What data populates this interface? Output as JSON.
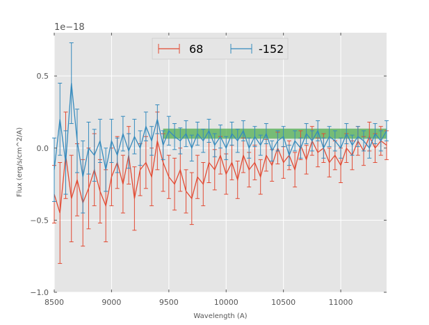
{
  "chart_data": {
    "type": "line",
    "title": "",
    "xlabel": "Wavelength (A)",
    "ylabel": "Flux (erg/s/cm^2/A)",
    "offset_text": "1e−18",
    "xlim": [
      8500,
      11400
    ],
    "ylim": [
      -1.0,
      0.8
    ],
    "xticks": [
      8500,
      9000,
      9500,
      10000,
      10500,
      11000
    ],
    "yticks": [
      -1.0,
      -0.5,
      0.0,
      0.5
    ],
    "ytick_labels": [
      "−1.0",
      "−0.5",
      "0.0",
      "0.5"
    ],
    "grid": true,
    "legend_position": "top-center",
    "colors": {
      "background": "#e5e5e5",
      "grid": "#ffffff",
      "band": "#2ca02c"
    },
    "band": {
      "x_range": [
        9450,
        11400
      ],
      "y_range": [
        0.065,
        0.135
      ]
    },
    "series": [
      {
        "name": "68",
        "color": "#e24a33",
        "x": [
          8500,
          8550,
          8600,
          8650,
          8700,
          8750,
          8800,
          8850,
          8900,
          8950,
          9000,
          9050,
          9100,
          9150,
          9200,
          9250,
          9300,
          9350,
          9400,
          9450,
          9500,
          9550,
          9600,
          9650,
          9700,
          9750,
          9800,
          9850,
          9900,
          9950,
          10000,
          10050,
          10100,
          10150,
          10200,
          10250,
          10300,
          10350,
          10400,
          10450,
          10500,
          10550,
          10600,
          10650,
          10700,
          10750,
          10800,
          10850,
          10900,
          10950,
          11000,
          11050,
          11100,
          11150,
          11200,
          11250,
          11300,
          11350,
          11400
        ],
        "y": [
          -0.32,
          -0.45,
          -0.05,
          -0.35,
          -0.22,
          -0.38,
          -0.28,
          -0.15,
          -0.3,
          -0.4,
          -0.2,
          -0.1,
          -0.25,
          -0.05,
          -0.35,
          -0.15,
          -0.1,
          -0.2,
          0.05,
          -0.1,
          -0.2,
          -0.25,
          -0.15,
          -0.3,
          -0.35,
          -0.2,
          -0.25,
          -0.1,
          -0.15,
          -0.05,
          -0.18,
          -0.1,
          -0.22,
          -0.05,
          -0.15,
          -0.1,
          -0.2,
          -0.05,
          -0.12,
          0.0,
          -0.1,
          -0.05,
          -0.15,
          0.02,
          -0.08,
          0.05,
          -0.03,
          0.0,
          -0.1,
          -0.05,
          -0.12,
          0.0,
          -0.05,
          0.05,
          -0.02,
          0.08,
          0.0,
          0.05,
          0.02
        ],
        "err": [
          0.2,
          0.35,
          0.3,
          0.3,
          0.25,
          0.3,
          0.28,
          0.25,
          0.22,
          0.25,
          0.2,
          0.18,
          0.2,
          0.2,
          0.22,
          0.18,
          0.18,
          0.2,
          0.2,
          0.2,
          0.15,
          0.18,
          0.15,
          0.15,
          0.18,
          0.15,
          0.15,
          0.14,
          0.14,
          0.13,
          0.14,
          0.12,
          0.13,
          0.12,
          0.12,
          0.12,
          0.12,
          0.11,
          0.11,
          0.11,
          0.11,
          0.1,
          0.12,
          0.1,
          0.1,
          0.1,
          0.1,
          0.1,
          0.1,
          0.1,
          0.12,
          0.1,
          0.1,
          0.1,
          0.1,
          0.1,
          0.1,
          0.1,
          0.1
        ]
      },
      {
        "name": "-152",
        "color": "#348abd",
        "x": [
          8500,
          8550,
          8600,
          8650,
          8700,
          8750,
          8800,
          8850,
          8900,
          8950,
          9000,
          9050,
          9100,
          9150,
          9200,
          9250,
          9300,
          9350,
          9400,
          9450,
          9500,
          9550,
          9600,
          9650,
          9700,
          9750,
          9800,
          9850,
          9900,
          9950,
          10000,
          10050,
          10100,
          10150,
          10200,
          10250,
          10300,
          10350,
          10400,
          10450,
          10500,
          10550,
          10600,
          10650,
          10700,
          10750,
          10800,
          10850,
          10900,
          10950,
          11000,
          11050,
          11100,
          11150,
          11200,
          11250,
          11300,
          11350,
          11400
        ],
        "y": [
          -0.15,
          0.2,
          -0.1,
          0.45,
          0.05,
          -0.2,
          0.0,
          -0.05,
          0.05,
          -0.15,
          0.05,
          -0.05,
          0.1,
          -0.02,
          0.08,
          0.0,
          0.15,
          0.05,
          0.2,
          0.02,
          0.12,
          0.08,
          0.05,
          0.1,
          0.0,
          0.1,
          0.05,
          0.12,
          0.02,
          0.08,
          0.0,
          0.1,
          0.05,
          0.12,
          0.0,
          0.08,
          0.02,
          0.1,
          -0.02,
          0.05,
          0.08,
          -0.05,
          0.05,
          0.0,
          0.1,
          0.05,
          0.12,
          0.0,
          0.08,
          0.05,
          0.0,
          0.1,
          0.02,
          0.08,
          0.05,
          0.0,
          0.1,
          0.05,
          0.12
        ],
        "err": [
          0.22,
          0.25,
          0.22,
          0.28,
          0.22,
          0.25,
          0.18,
          0.18,
          0.15,
          0.15,
          0.15,
          0.12,
          0.12,
          0.12,
          0.12,
          0.12,
          0.1,
          0.1,
          0.1,
          0.1,
          0.1,
          0.09,
          0.09,
          0.09,
          0.09,
          0.08,
          0.08,
          0.08,
          0.08,
          0.08,
          0.08,
          0.08,
          0.08,
          0.07,
          0.07,
          0.07,
          0.07,
          0.07,
          0.07,
          0.07,
          0.07,
          0.07,
          0.07,
          0.07,
          0.07,
          0.07,
          0.07,
          0.07,
          0.07,
          0.07,
          0.07,
          0.07,
          0.07,
          0.07,
          0.07,
          0.07,
          0.07,
          0.07,
          0.07
        ]
      }
    ]
  }
}
